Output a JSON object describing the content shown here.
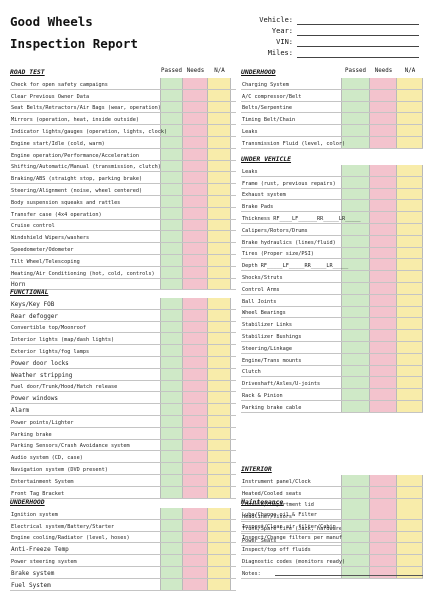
{
  "header": {
    "title_line1": "Good Wheels",
    "title_line2": "Inspection Report",
    "vehicle_fields": [
      "Vehicle:",
      "Year:",
      "VIN:",
      "Miles:"
    ]
  },
  "columns": [
    "Passed",
    "Needs",
    "N/A"
  ],
  "colors": {
    "passed": "#cfe9c7",
    "needs": "#f3c3cd",
    "na": "#f8ecaa"
  },
  "left_sections": [
    {
      "title": "ROAD TEST",
      "items": [
        "Check for open safety campaigns",
        "Clear Previous Owner Data",
        "Seat Belts/Retractors/Air Bags (wear, operation)",
        "Mirrors (operation, heat, inside outside)",
        "Indicator lights/gauges (operation, lights, clock)",
        "Engine start/Idle (cold, warm)",
        "Engine operation/Performance/Acceleration",
        "Shifting/Automatic/Manual (transmission, clutch)",
        "Braking/ABS (straight stop, parking brake)",
        "Steering/Alignment (noise, wheel centered)",
        "Body suspension squeaks and rattles",
        "Transfer case (4x4 operation)",
        "Cruise control",
        "Windshield Wipers/washers",
        "Speedometer/Odometer",
        "Tilt Wheel/Telescoping",
        "Heating/Air Conditioning (hot, cold, controls)",
        "Horn"
      ]
    },
    {
      "title": "FUNCTIONAL",
      "items": [
        "Keys/Key FOB",
        "Rear defogger",
        "Convertible top/Moonroof",
        "Interior lights (map/dash lights)",
        "Exterior lights/fog lamps",
        "Power door locks",
        "Weather stripping",
        "Fuel door/Trunk/Hood/Hatch release",
        "Power windows",
        "Alarm",
        "Power points/Lighter",
        "Parking brake",
        "Parking Sensors/Crash Avoidance system",
        "Audio system (CD, case)",
        "Navigation system (DVD present)",
        "Entertainment System",
        "Front Tag Bracket"
      ]
    },
    {
      "title": "UNDERHOOD",
      "items": [
        "Ignition system",
        "Electrical system/Battery/Starter",
        "Engine cooling/Radiator (level, hoses)",
        "Anti-Freeze Temp",
        "Power steering system",
        "Brake system",
        "Fuel System"
      ]
    }
  ],
  "right_sections": [
    {
      "title": "UNDERHOOD",
      "items": [
        "Charging System",
        "A/C compressor/Belt",
        "Belts/Serpentine",
        "Timing Belt/Chain",
        "Leaks",
        "Transmission Fluid (level, color)"
      ]
    },
    {
      "title": "UNDER VEHICLE",
      "items": [
        "Leaks",
        "Frame (rust, previous repairs)",
        "Exhaust system",
        "Brake Pads",
        "Thickness RF____LF______RR_____LR_____",
        "Calipers/Rotors/Drums",
        "Brake hydraulics (lines/fluid)",
        "Tires (Proper size/PSI)",
        "Depth RF_____LF_____RR_____LR_____",
        "Shocks/Struts",
        "Control Arms",
        "Ball Joints",
        "Wheel Bearings",
        "Stabilizer Links",
        "Stabilizer Bushings",
        "Steering/Linkage",
        "Engine/Trans mounts",
        "Clutch",
        "Driveshaft/Axles/U-joints",
        "Rack & Pinion",
        "Parking brake cable"
      ]
    },
    {
      "title": "INTERIOR",
      "items": [
        "Instrument panel/Clock",
        "Heated/Cooled seats",
        "Console/compartment lid",
        "Headliner/Visors",
        "Trunk/Spare tire (Jack, hardware)",
        "Power Seats"
      ]
    },
    {
      "title": "Maintenance",
      "items": [
        "Lube/Change oil & Filter",
        "Inspect/Clean air filter/Cabin",
        "Inspect/Change filters per manuf",
        "Inspect/top off fluids",
        "Diagnostic codes (monitors ready)",
        "Notes:"
      ]
    }
  ]
}
